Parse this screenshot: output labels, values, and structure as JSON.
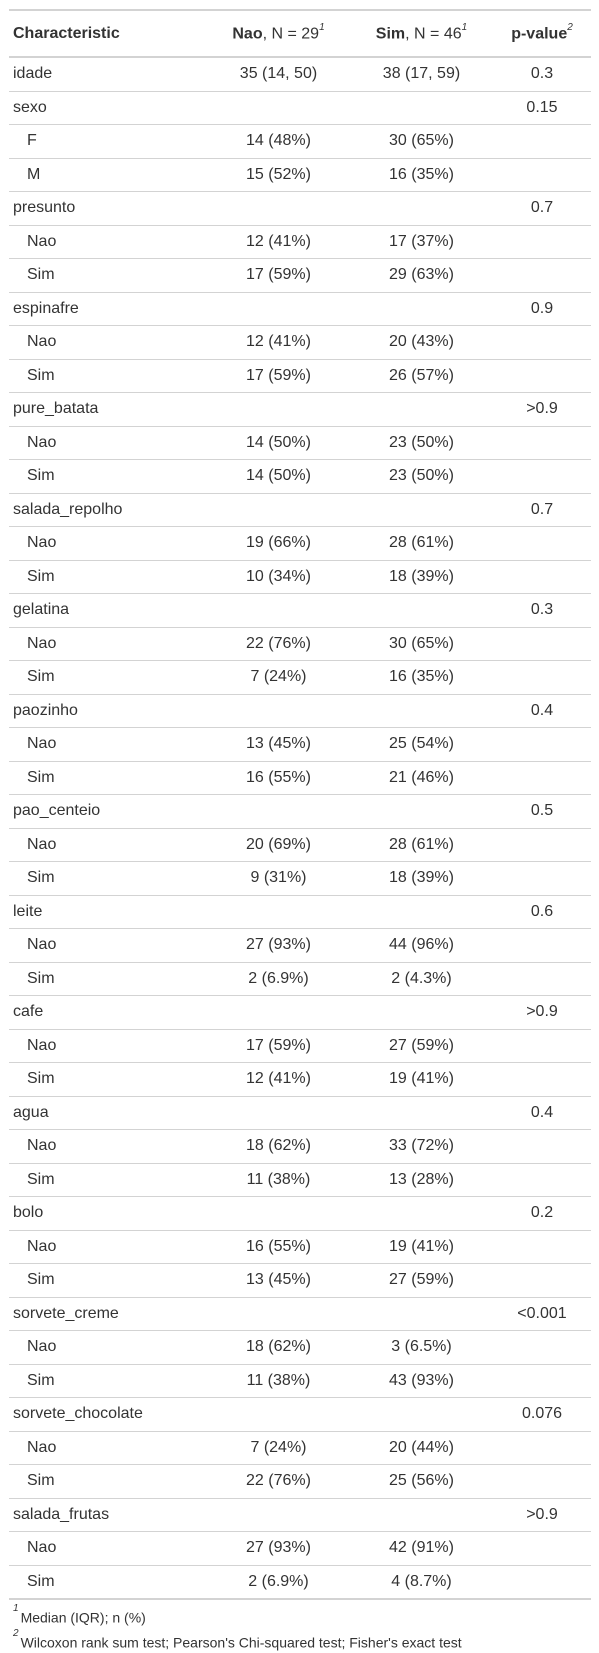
{
  "header": {
    "characteristic": "Characteristic",
    "col1_bold": "Nao",
    "col1_rest": ", N = 29",
    "col1_sup": "1",
    "col2_bold": "Sim",
    "col2_rest": ", N = 46",
    "col2_sup": "1",
    "pvalue": "p-value",
    "pvalue_sup": "2"
  },
  "rows": [
    {
      "label": "idade",
      "a": "35 (14, 50)",
      "b": "38 (17, 59)",
      "p": "0.3",
      "level": 0
    },
    {
      "label": "sexo",
      "a": "",
      "b": "",
      "p": "0.15",
      "level": 0
    },
    {
      "label": "F",
      "a": "14 (48%)",
      "b": "30 (65%)",
      "p": "",
      "level": 1
    },
    {
      "label": "M",
      "a": "15 (52%)",
      "b": "16 (35%)",
      "p": "",
      "level": 1
    },
    {
      "label": "presunto",
      "a": "",
      "b": "",
      "p": "0.7",
      "level": 0
    },
    {
      "label": "Nao",
      "a": "12 (41%)",
      "b": "17 (37%)",
      "p": "",
      "level": 1
    },
    {
      "label": "Sim",
      "a": "17 (59%)",
      "b": "29 (63%)",
      "p": "",
      "level": 1
    },
    {
      "label": "espinafre",
      "a": "",
      "b": "",
      "p": "0.9",
      "level": 0
    },
    {
      "label": "Nao",
      "a": "12 (41%)",
      "b": "20 (43%)",
      "p": "",
      "level": 1
    },
    {
      "label": "Sim",
      "a": "17 (59%)",
      "b": "26 (57%)",
      "p": "",
      "level": 1
    },
    {
      "label": "pure_batata",
      "a": "",
      "b": "",
      "p": ">0.9",
      "level": 0
    },
    {
      "label": "Nao",
      "a": "14 (50%)",
      "b": "23 (50%)",
      "p": "",
      "level": 1
    },
    {
      "label": "Sim",
      "a": "14 (50%)",
      "b": "23 (50%)",
      "p": "",
      "level": 1
    },
    {
      "label": "salada_repolho",
      "a": "",
      "b": "",
      "p": "0.7",
      "level": 0
    },
    {
      "label": "Nao",
      "a": "19 (66%)",
      "b": "28 (61%)",
      "p": "",
      "level": 1
    },
    {
      "label": "Sim",
      "a": "10 (34%)",
      "b": "18 (39%)",
      "p": "",
      "level": 1
    },
    {
      "label": "gelatina",
      "a": "",
      "b": "",
      "p": "0.3",
      "level": 0
    },
    {
      "label": "Nao",
      "a": "22 (76%)",
      "b": "30 (65%)",
      "p": "",
      "level": 1
    },
    {
      "label": "Sim",
      "a": "7 (24%)",
      "b": "16 (35%)",
      "p": "",
      "level": 1
    },
    {
      "label": "paozinho",
      "a": "",
      "b": "",
      "p": "0.4",
      "level": 0
    },
    {
      "label": "Nao",
      "a": "13 (45%)",
      "b": "25 (54%)",
      "p": "",
      "level": 1
    },
    {
      "label": "Sim",
      "a": "16 (55%)",
      "b": "21 (46%)",
      "p": "",
      "level": 1
    },
    {
      "label": "pao_centeio",
      "a": "",
      "b": "",
      "p": "0.5",
      "level": 0
    },
    {
      "label": "Nao",
      "a": "20 (69%)",
      "b": "28 (61%)",
      "p": "",
      "level": 1
    },
    {
      "label": "Sim",
      "a": "9 (31%)",
      "b": "18 (39%)",
      "p": "",
      "level": 1
    },
    {
      "label": "leite",
      "a": "",
      "b": "",
      "p": "0.6",
      "level": 0
    },
    {
      "label": "Nao",
      "a": "27 (93%)",
      "b": "44 (96%)",
      "p": "",
      "level": 1
    },
    {
      "label": "Sim",
      "a": "2 (6.9%)",
      "b": "2 (4.3%)",
      "p": "",
      "level": 1
    },
    {
      "label": "cafe",
      "a": "",
      "b": "",
      "p": ">0.9",
      "level": 0
    },
    {
      "label": "Nao",
      "a": "17 (59%)",
      "b": "27 (59%)",
      "p": "",
      "level": 1
    },
    {
      "label": "Sim",
      "a": "12 (41%)",
      "b": "19 (41%)",
      "p": "",
      "level": 1
    },
    {
      "label": "agua",
      "a": "",
      "b": "",
      "p": "0.4",
      "level": 0
    },
    {
      "label": "Nao",
      "a": "18 (62%)",
      "b": "33 (72%)",
      "p": "",
      "level": 1
    },
    {
      "label": "Sim",
      "a": "11 (38%)",
      "b": "13 (28%)",
      "p": "",
      "level": 1
    },
    {
      "label": "bolo",
      "a": "",
      "b": "",
      "p": "0.2",
      "level": 0
    },
    {
      "label": "Nao",
      "a": "16 (55%)",
      "b": "19 (41%)",
      "p": "",
      "level": 1
    },
    {
      "label": "Sim",
      "a": "13 (45%)",
      "b": "27 (59%)",
      "p": "",
      "level": 1
    },
    {
      "label": "sorvete_creme",
      "a": "",
      "b": "",
      "p": "<0.001",
      "level": 0
    },
    {
      "label": "Nao",
      "a": "18 (62%)",
      "b": "3 (6.5%)",
      "p": "",
      "level": 1
    },
    {
      "label": "Sim",
      "a": "11 (38%)",
      "b": "43 (93%)",
      "p": "",
      "level": 1
    },
    {
      "label": "sorvete_chocolate",
      "a": "",
      "b": "",
      "p": "0.076",
      "level": 0
    },
    {
      "label": "Nao",
      "a": "7 (24%)",
      "b": "20 (44%)",
      "p": "",
      "level": 1
    },
    {
      "label": "Sim",
      "a": "22 (76%)",
      "b": "25 (56%)",
      "p": "",
      "level": 1
    },
    {
      "label": "salada_frutas",
      "a": "",
      "b": "",
      "p": ">0.9",
      "level": 0
    },
    {
      "label": "Nao",
      "a": "27 (93%)",
      "b": "42 (91%)",
      "p": "",
      "level": 1
    },
    {
      "label": "Sim",
      "a": "2 (6.9%)",
      "b": "4 (8.7%)",
      "p": "",
      "level": 1
    }
  ],
  "footnotes": [
    {
      "mark": "1",
      "text": "Median (IQR); n (%)"
    },
    {
      "mark": "2",
      "text": "Wilcoxon rank sum test; Pearson's Chi-squared test; Fisher's exact test"
    }
  ]
}
